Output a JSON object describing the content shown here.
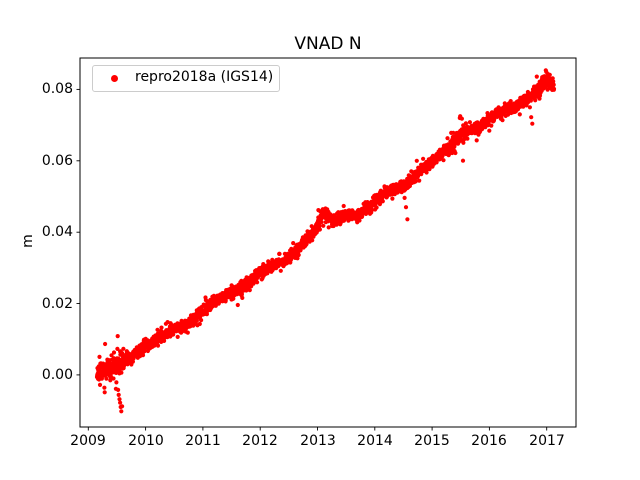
{
  "figure": {
    "title": "VNAD N",
    "ylabel": "m",
    "legend": {
      "label": "repro2018a (IGS14)",
      "marker_color": "#ff0000"
    },
    "colors": {
      "points": "#ff0000",
      "axis": "#000000",
      "background": "#ffffff",
      "legend_border": "#cccccc"
    }
  },
  "chart_data": {
    "type": "scatter",
    "title": "VNAD N",
    "xlabel": "",
    "ylabel": "m",
    "legend_entries": [
      "repro2018a (IGS14)"
    ],
    "legend_position": "upper left",
    "grid": false,
    "xlim": [
      2008.855,
      2017.512
    ],
    "ylim": [
      -0.0146,
      0.0888
    ],
    "xticks": [
      {
        "v": 2009,
        "label": "2009"
      },
      {
        "v": 2010,
        "label": "2010"
      },
      {
        "v": 2011,
        "label": "2011"
      },
      {
        "v": 2012,
        "label": "2012"
      },
      {
        "v": 2013,
        "label": "2013"
      },
      {
        "v": 2014,
        "label": "2014"
      },
      {
        "v": 2015,
        "label": "2015"
      },
      {
        "v": 2016,
        "label": "2016"
      },
      {
        "v": 2017,
        "label": "2017"
      }
    ],
    "yticks": [
      {
        "v": 0.0,
        "label": "0.00"
      },
      {
        "v": 0.02,
        "label": "0.02"
      },
      {
        "v": 0.04,
        "label": "0.04"
      },
      {
        "v": 0.06,
        "label": "0.06"
      },
      {
        "v": 0.08,
        "label": "0.08"
      }
    ],
    "series": [
      {
        "name": "repro2018a (IGS14)",
        "color": "#ff0000",
        "marker": "dot",
        "marker_size_px": 2.1,
        "seed": 11,
        "x_start": 2009.15,
        "x_end": 2017.13,
        "points_per_year": 340,
        "noise_sigma": 0.0008,
        "noise_boosts": [
          [
            2009.15,
            2009.62,
            2.0
          ],
          [
            2013.0,
            2013.2,
            1.3
          ],
          [
            2015.35,
            2015.62,
            1.5
          ],
          [
            2016.82,
            2017.08,
            1.4
          ]
        ],
        "trend": [
          [
            2009.15,
            0.0008
          ],
          [
            2009.3,
            0.0012
          ],
          [
            2009.45,
            0.002
          ],
          [
            2009.6,
            0.0035
          ],
          [
            2009.8,
            0.0058
          ],
          [
            2010.0,
            0.008
          ],
          [
            2010.2,
            0.0098
          ],
          [
            2010.4,
            0.0118
          ],
          [
            2010.6,
            0.0135
          ],
          [
            2010.8,
            0.0148
          ],
          [
            2011.0,
            0.018
          ],
          [
            2011.2,
            0.0205
          ],
          [
            2011.4,
            0.0222
          ],
          [
            2011.6,
            0.0238
          ],
          [
            2011.8,
            0.026
          ],
          [
            2012.0,
            0.0288
          ],
          [
            2012.2,
            0.0305
          ],
          [
            2012.4,
            0.032
          ],
          [
            2012.6,
            0.0342
          ],
          [
            2012.8,
            0.0375
          ],
          [
            2013.0,
            0.0415
          ],
          [
            2013.1,
            0.0452
          ],
          [
            2013.3,
            0.0432
          ],
          [
            2013.5,
            0.0448
          ],
          [
            2013.7,
            0.0446
          ],
          [
            2013.9,
            0.0472
          ],
          [
            2014.1,
            0.0498
          ],
          [
            2014.3,
            0.052
          ],
          [
            2014.5,
            0.0532
          ],
          [
            2014.7,
            0.0558
          ],
          [
            2014.9,
            0.0585
          ],
          [
            2015.1,
            0.0612
          ],
          [
            2015.3,
            0.0642
          ],
          [
            2015.5,
            0.067
          ],
          [
            2015.65,
            0.0685
          ],
          [
            2015.8,
            0.069
          ],
          [
            2016.0,
            0.072
          ],
          [
            2016.2,
            0.074
          ],
          [
            2016.4,
            0.0748
          ],
          [
            2016.6,
            0.0768
          ],
          [
            2016.8,
            0.0792
          ],
          [
            2016.95,
            0.082
          ],
          [
            2017.05,
            0.0825
          ],
          [
            2017.13,
            0.0805
          ]
        ],
        "outliers": [
          [
            2009.52,
            -0.0042
          ],
          [
            2009.53,
            -0.0056
          ],
          [
            2009.545,
            -0.0068
          ],
          [
            2009.555,
            -0.0078
          ],
          [
            2009.565,
            -0.009
          ],
          [
            2009.575,
            -0.0102
          ],
          [
            2009.59,
            -0.0088
          ],
          [
            2011.61,
            0.0196
          ],
          [
            2014.52,
            0.0496
          ],
          [
            2014.545,
            0.047
          ],
          [
            2014.57,
            0.0436
          ],
          [
            2015.49,
            0.0725
          ],
          [
            2015.52,
            0.0718
          ],
          [
            2016.73,
            0.0722
          ],
          [
            2016.75,
            0.0704
          ]
        ]
      }
    ]
  }
}
